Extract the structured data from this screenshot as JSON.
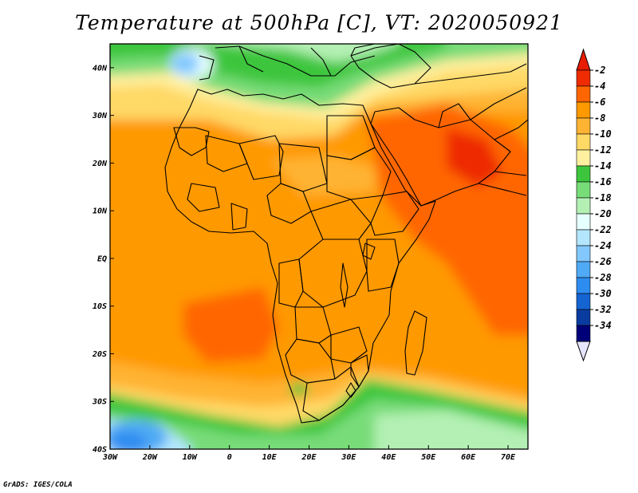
{
  "title": "Temperature at 500hPa [C], VT: 2020050921",
  "credit": "GrADS: IGES/COLA",
  "map": {
    "variable": "Temperature at 500hPa",
    "units": "C",
    "valid_time": "2020050921",
    "lon_range": [
      -30,
      75
    ],
    "lat_range": [
      -40,
      45
    ],
    "x_ticks": [
      {
        "value": -30,
        "label": "30W"
      },
      {
        "value": -20,
        "label": "20W"
      },
      {
        "value": -10,
        "label": "10W"
      },
      {
        "value": 0,
        "label": "0"
      },
      {
        "value": 10,
        "label": "10E"
      },
      {
        "value": 20,
        "label": "20E"
      },
      {
        "value": 30,
        "label": "30E"
      },
      {
        "value": 40,
        "label": "40E"
      },
      {
        "value": 50,
        "label": "50E"
      },
      {
        "value": 60,
        "label": "60E"
      },
      {
        "value": 70,
        "label": "70E"
      }
    ],
    "y_ticks": [
      {
        "value": 40,
        "label": "40N"
      },
      {
        "value": 30,
        "label": "30N"
      },
      {
        "value": 20,
        "label": "20N"
      },
      {
        "value": 10,
        "label": "10N"
      },
      {
        "value": 0,
        "label": "EQ"
      },
      {
        "value": -10,
        "label": "10S"
      },
      {
        "value": -20,
        "label": "20S"
      },
      {
        "value": -30,
        "label": "30S"
      },
      {
        "value": -40,
        "label": "40S"
      }
    ]
  },
  "colorbar": {
    "levels": [
      "-2",
      "-4",
      "-6",
      "-8",
      "-10",
      "-12",
      "-14",
      "-16",
      "-18",
      "-20",
      "-22",
      "-24",
      "-26",
      "-28",
      "-30",
      "-32",
      "-34"
    ],
    "colors": [
      "#ee2c00",
      "#ff6600",
      "#ff9900",
      "#ffb333",
      "#ffd966",
      "#fff0a0",
      "#3dc63d",
      "#78dc78",
      "#b4f0b4",
      "#e6ffff",
      "#b4e6ff",
      "#82c8ff",
      "#50aaf5",
      "#2d8cf0",
      "#1464d2",
      "#0a3ca0",
      "#000078"
    ],
    "top_arrow_color": "#e81c00",
    "bottom_arrow_color": "#e6e6ff"
  }
}
